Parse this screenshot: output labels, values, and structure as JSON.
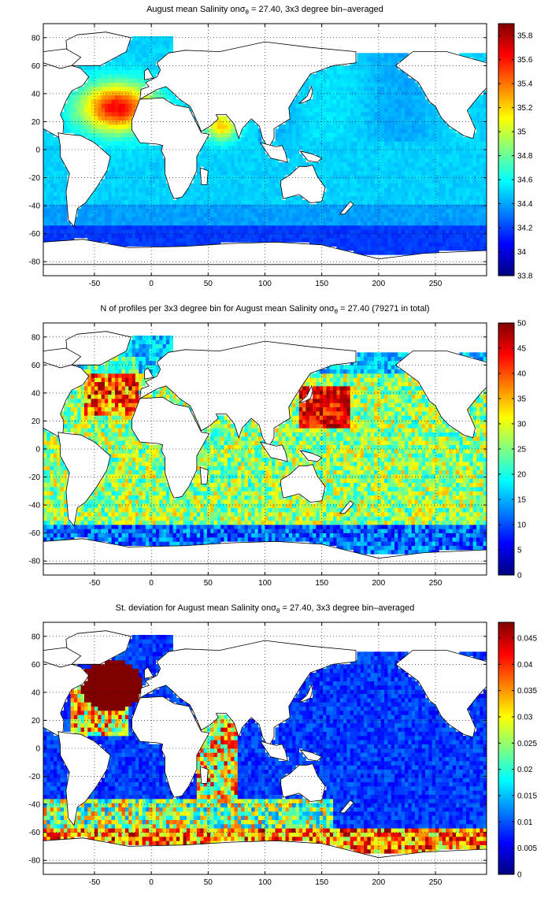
{
  "chart_data": [
    {
      "type": "heatmap",
      "title_prefix": "August mean Salinity on",
      "title_symbol": "σ",
      "title_sub": "θ",
      "title_suffix": " = 27.40, 3x3 degree bin–averaged",
      "xlim": [
        -95,
        295
      ],
      "ylim": [
        -90,
        90
      ],
      "xticks": [
        "-50",
        "0",
        "50",
        "100",
        "150",
        "200",
        "250"
      ],
      "xtick_values": [
        -50,
        0,
        50,
        100,
        150,
        200,
        250
      ],
      "yticks": [
        "80",
        "60",
        "40",
        "20",
        "0",
        "-20",
        "-40",
        "-60",
        "-80"
      ],
      "ytick_values": [
        80,
        60,
        40,
        20,
        0,
        -20,
        -40,
        -60,
        -80
      ],
      "grid": true,
      "colorbar": {
        "min": 33.8,
        "max": 35.9,
        "ticks": [
          "35.8",
          "35.6",
          "35.4",
          "35.2",
          "35",
          "34.8",
          "34.6",
          "34.4",
          "34.2",
          "34",
          "33.8"
        ],
        "tick_values": [
          35.8,
          35.6,
          35.4,
          35.2,
          35.0,
          34.8,
          34.6,
          34.4,
          34.2,
          34.0,
          33.8
        ]
      }
    },
    {
      "type": "heatmap",
      "title_prefix": "N of profiles per 3x3 degree bin for August mean Salinity on",
      "title_symbol": "σ",
      "title_sub": "θ",
      "title_suffix": " = 27.40 (79271 in total)",
      "xlim": [
        -95,
        295
      ],
      "ylim": [
        -90,
        90
      ],
      "xticks": [
        "-50",
        "0",
        "50",
        "100",
        "150",
        "200",
        "250"
      ],
      "xtick_values": [
        -50,
        0,
        50,
        100,
        150,
        200,
        250
      ],
      "yticks": [
        "80",
        "60",
        "40",
        "20",
        "0",
        "-20",
        "-40",
        "-60",
        "-80"
      ],
      "ytick_values": [
        80,
        60,
        40,
        20,
        0,
        -20,
        -40,
        -60,
        -80
      ],
      "grid": true,
      "colorbar": {
        "min": 0,
        "max": 50,
        "ticks": [
          "50",
          "45",
          "40",
          "35",
          "30",
          "25",
          "20",
          "15",
          "10",
          "5",
          "0"
        ],
        "tick_values": [
          50,
          45,
          40,
          35,
          30,
          25,
          20,
          15,
          10,
          5,
          0
        ]
      }
    },
    {
      "type": "heatmap",
      "title_prefix": "St. deviation for August mean Salinity on",
      "title_symbol": "σ",
      "title_sub": "θ",
      "title_suffix": " = 27.40, 3x3 degree bin–averaged",
      "xlim": [
        -95,
        295
      ],
      "ylim": [
        -90,
        90
      ],
      "xticks": [
        "-50",
        "0",
        "50",
        "100",
        "150",
        "200",
        "250"
      ],
      "xtick_values": [
        -50,
        0,
        50,
        100,
        150,
        200,
        250
      ],
      "yticks": [
        "80",
        "60",
        "40",
        "20",
        "0",
        "-20",
        "-40",
        "-60",
        "-80"
      ],
      "ytick_values": [
        80,
        60,
        40,
        20,
        0,
        -20,
        -40,
        -60,
        -80
      ],
      "grid": true,
      "colorbar": {
        "min": 0,
        "max": 0.048,
        "ticks": [
          "0.045",
          "0.04",
          "0.035",
          "0.03",
          "0.025",
          "0.02",
          "0.015",
          "0.01",
          "0.005",
          "0"
        ],
        "tick_values": [
          0.045,
          0.04,
          0.035,
          0.03,
          0.025,
          0.02,
          0.015,
          0.01,
          0.005,
          0
        ]
      }
    }
  ]
}
